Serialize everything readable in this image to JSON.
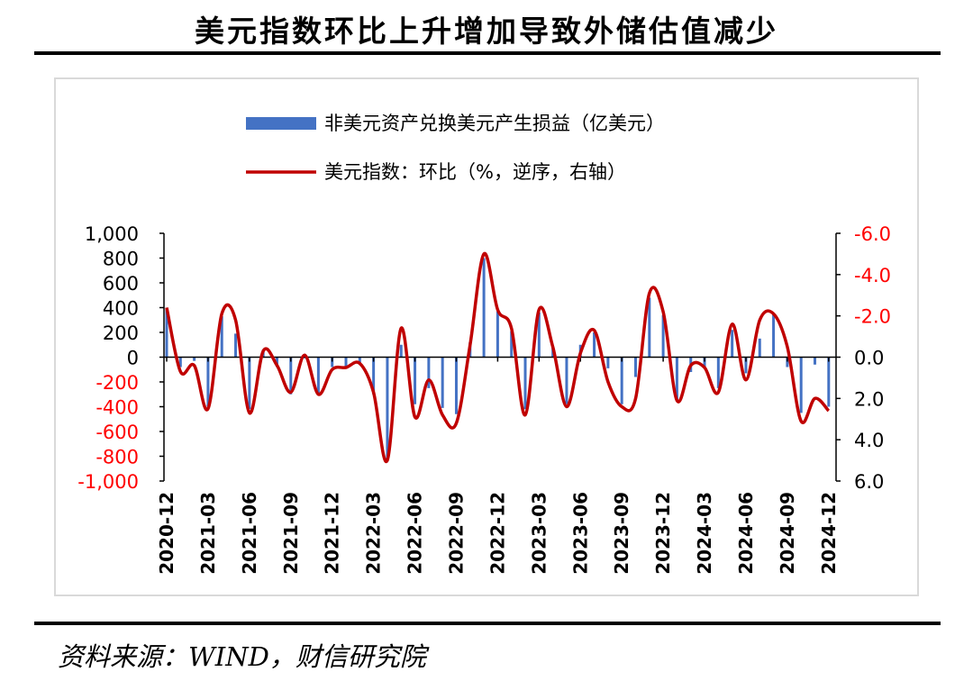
{
  "title": "美元指数环比上升增加导致外储估值减少",
  "source": "资料来源：WIND，财信研究院",
  "colors": {
    "bar": "#4472c4",
    "line": "#c00000",
    "left_tick": "#000000",
    "left_neg_tick": "#ff0000",
    "right_tick": "#ff0000"
  },
  "chart_data": {
    "type": "bar+line",
    "legend": [
      {
        "key": "bar",
        "label": "非美元资产兑换美元产生损益（亿美元）"
      },
      {
        "key": "line",
        "label": "美元指数：环比（%，逆序，右轴）"
      }
    ],
    "legend_position": "top",
    "x": [
      "2020-12",
      "2021-01",
      "2021-02",
      "2021-03",
      "2021-04",
      "2021-05",
      "2021-06",
      "2021-07",
      "2021-08",
      "2021-09",
      "2021-10",
      "2021-11",
      "2021-12",
      "2022-01",
      "2022-02",
      "2022-03",
      "2022-04",
      "2022-05",
      "2022-06",
      "2022-07",
      "2022-08",
      "2022-09",
      "2022-10",
      "2022-11",
      "2022-12",
      "2023-01",
      "2023-02",
      "2023-03",
      "2023-04",
      "2023-05",
      "2023-06",
      "2023-07",
      "2023-08",
      "2023-09",
      "2023-10",
      "2023-11",
      "2023-12",
      "2024-01",
      "2024-02",
      "2024-03",
      "2024-04",
      "2024-05",
      "2024-06",
      "2024-07",
      "2024-08",
      "2024-09",
      "2024-10",
      "2024-11",
      "2024-12"
    ],
    "x_tick_labels": [
      "2020-12",
      "2021-03",
      "2021-06",
      "2021-09",
      "2021-12",
      "2022-03",
      "2022-06",
      "2022-09",
      "2022-12",
      "2023-03",
      "2023-06",
      "2023-09",
      "2023-12",
      "2024-03",
      "2024-06",
      "2024-09",
      "2024-12"
    ],
    "bar_values": [
      400,
      -80,
      -30,
      -400,
      330,
      190,
      -420,
      60,
      -80,
      -300,
      -10,
      -290,
      -80,
      -90,
      -60,
      -300,
      -820,
      100,
      -380,
      -250,
      -410,
      -460,
      120,
      800,
      370,
      210,
      -420,
      360,
      80,
      -380,
      100,
      200,
      -90,
      -380,
      -160,
      480,
      340,
      -340,
      -120,
      -90,
      -250,
      220,
      -130,
      150,
      350,
      -80,
      -450,
      -60,
      -400
    ],
    "line_values": [
      -2.4,
      0.7,
      0.4,
      2.5,
      -2.1,
      -1.8,
      2.7,
      -0.3,
      0.4,
      1.7,
      -0.1,
      1.8,
      0.6,
      0.5,
      0.3,
      1.7,
      5.0,
      -1.4,
      2.9,
      1.1,
      2.8,
      3.2,
      -0.6,
      -5.0,
      -2.3,
      -1.4,
      2.8,
      -2.3,
      -0.5,
      2.4,
      -0.2,
      -1.3,
      1.2,
      2.4,
      2.0,
      -3.1,
      -2.2,
      2.1,
      0.4,
      0.5,
      1.7,
      -1.6,
      1.1,
      -1.8,
      -2.1,
      -0.5,
      3.1,
      2.0,
      2.6
    ],
    "y_left": {
      "min": -1000,
      "max": 1000,
      "ticks": [
        "1,000",
        "800",
        "600",
        "400",
        "200",
        "0",
        "-200",
        "-400",
        "-600",
        "-800",
        "-1,000"
      ]
    },
    "y_right": {
      "min": 6.0,
      "max": -6.0,
      "inverted": true,
      "ticks": [
        "-6.0",
        "-4.0",
        "-2.0",
        "0.0",
        "2.0",
        "4.0",
        "6.0"
      ]
    },
    "grid": false
  }
}
